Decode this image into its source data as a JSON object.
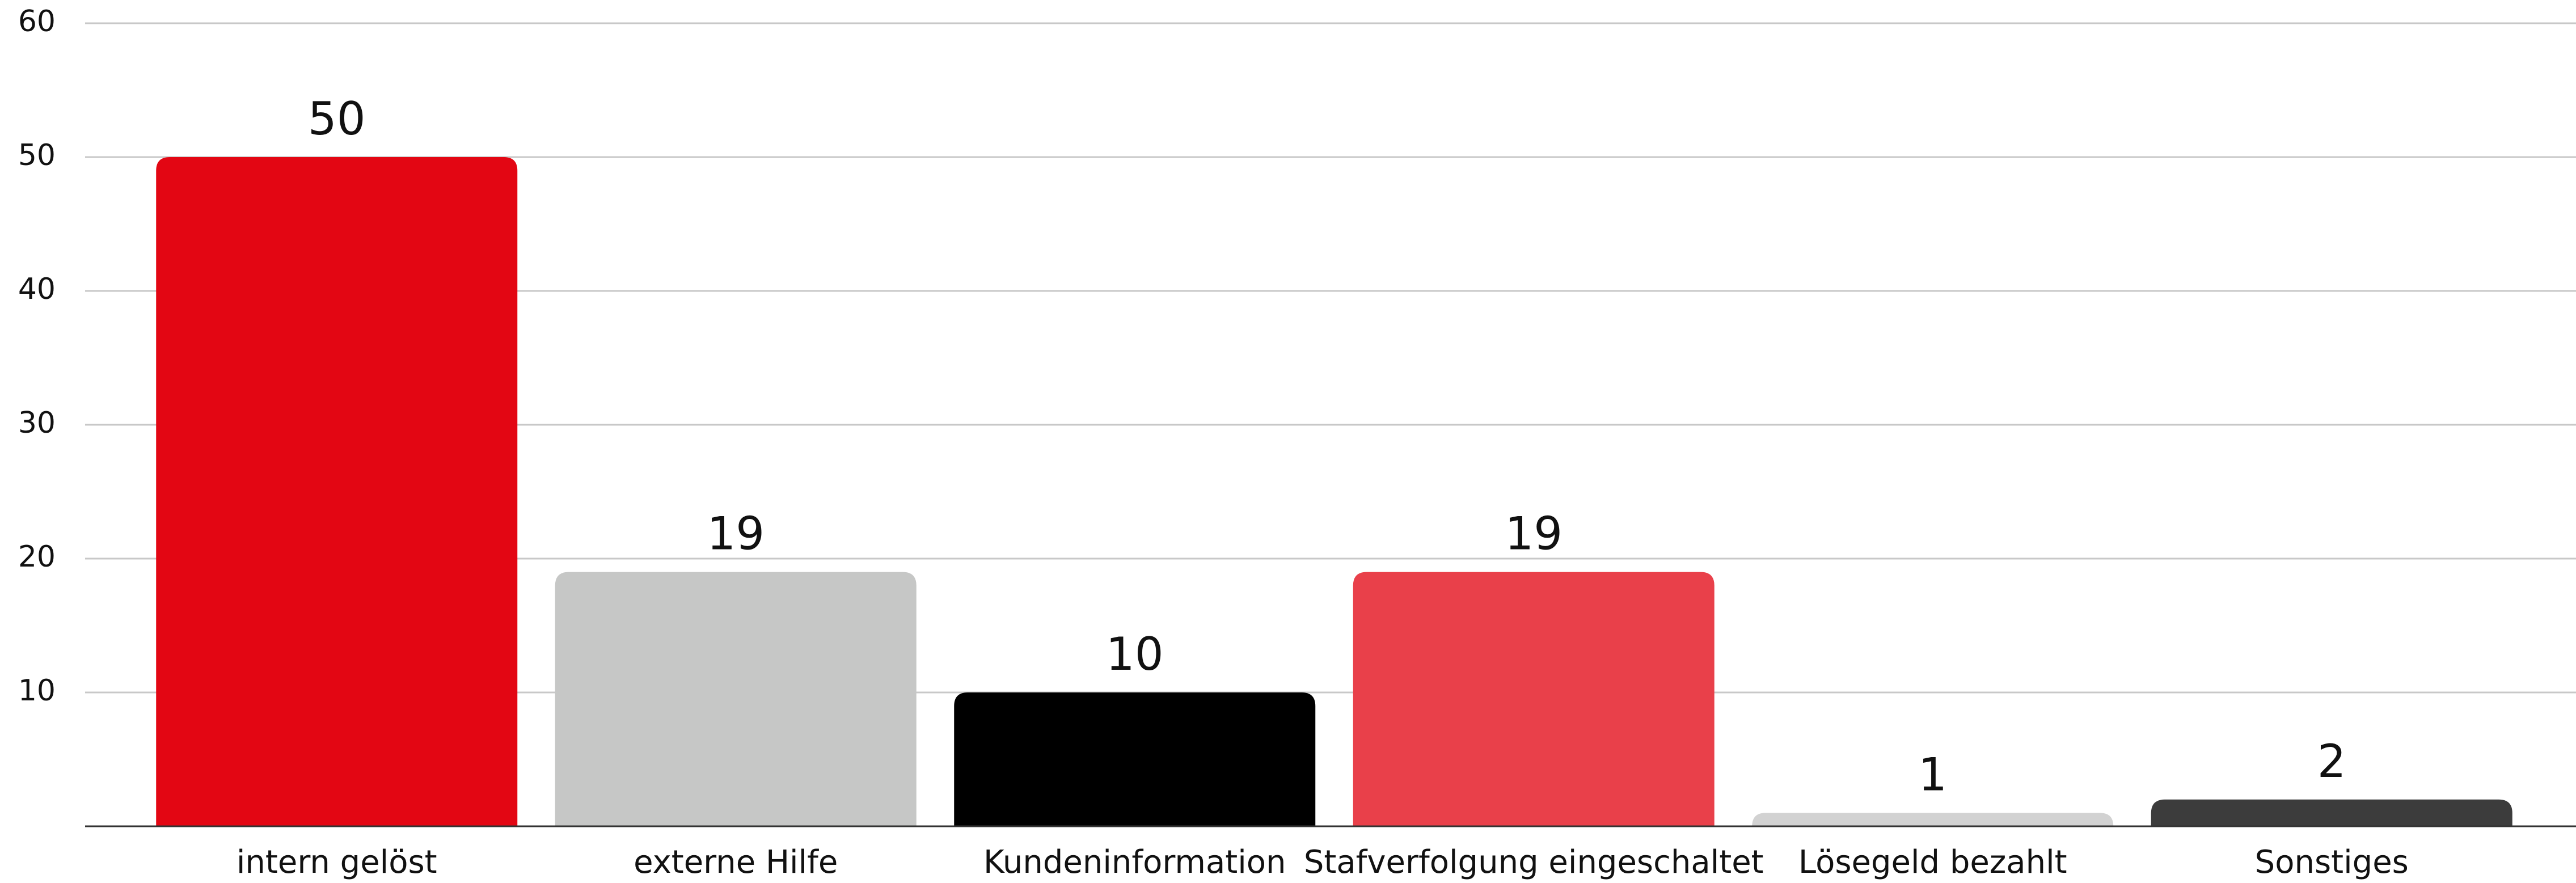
{
  "chart_data": {
    "type": "bar",
    "categories": [
      "intern gelöst",
      "externe Hilfe",
      "Kundeninformation",
      "Stafverfolgung eingeschaltet",
      "Lösegeld bezahlt",
      "Sonstiges"
    ],
    "values": [
      50,
      19,
      10,
      19,
      1,
      2
    ],
    "colors": [
      "#e30613",
      "#c6c7c6",
      "#000000",
      "#e9404a",
      "#d2d2d2",
      "#3c3c3c"
    ],
    "ylim": [
      0,
      60
    ],
    "yticks": [
      10,
      20,
      30,
      40,
      50,
      60
    ],
    "grid": true
  }
}
